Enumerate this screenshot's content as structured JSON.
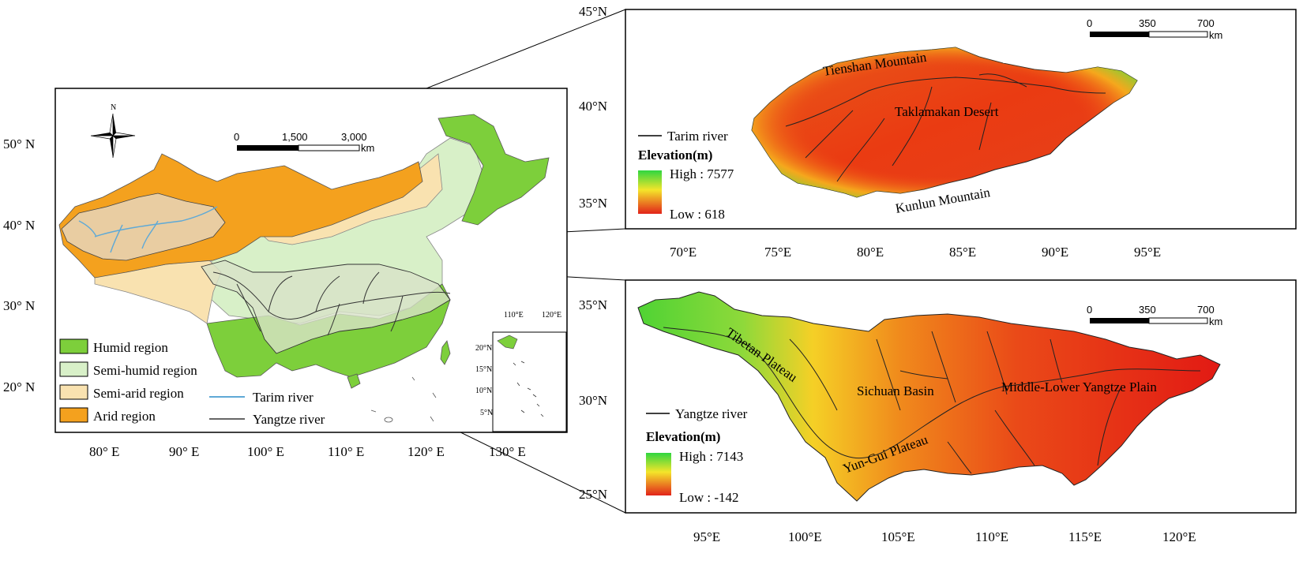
{
  "left_map": {
    "lat_ticks": [
      "50° N",
      "40° N",
      "30° N",
      "20° N"
    ],
    "lon_ticks": [
      "80° E",
      "90° E",
      "100° E",
      "110° E",
      "120° E",
      "130° E"
    ],
    "compass": "N",
    "scale": {
      "labels": [
        "0",
        "1,500",
        "3,000"
      ],
      "unit": "km"
    },
    "legend": [
      {
        "label": "Humid region",
        "color": "#7dcf3b"
      },
      {
        "label": "Semi-humid region",
        "color": "#d8f0c8"
      },
      {
        "label": "Semi-arid region",
        "color": "#f9e2b0"
      },
      {
        "label": "Arid region",
        "color": "#f4a11e"
      }
    ],
    "line_legend": [
      {
        "label": "Tarim river",
        "color": "#5fa9d6"
      },
      {
        "label": "Yangtze river",
        "color": "#333333"
      }
    ],
    "inset": {
      "lon_ticks": [
        "110°E",
        "120°E"
      ],
      "lat_ticks": [
        "20°N",
        "15°N",
        "10°N",
        "5°N"
      ]
    }
  },
  "tarim_map": {
    "lat_ticks": [
      "45°N",
      "40°N",
      "35°N"
    ],
    "lon_ticks": [
      "70°E",
      "75°E",
      "80°E",
      "85°E",
      "90°E",
      "95°E"
    ],
    "labels": {
      "tienshan": "Tienshan Mountain",
      "desert": "Taklamakan Desert",
      "kunlun": "Kunlun Mountain"
    },
    "river_legend": "Tarim river",
    "elevation": {
      "title": "Elevation(m)",
      "high": "High : 7577",
      "low": "Low : 618"
    },
    "scale": {
      "labels": [
        "0",
        "350",
        "700"
      ],
      "unit": "km"
    }
  },
  "yangtze_map": {
    "lat_ticks": [
      "35°N",
      "30°N",
      "25°N"
    ],
    "lon_ticks": [
      "95°E",
      "100°E",
      "105°E",
      "110°E",
      "115°E",
      "120°E"
    ],
    "labels": {
      "tibetan": "Tibetan Plateau",
      "sichuan": "Sichuan Basin",
      "plain": "Middle-Lower Yangtze Plain",
      "yungui": "Yun-Gui Plateau"
    },
    "river_legend": "Yangtze river",
    "elevation": {
      "title": "Elevation(m)",
      "high": "High : 7143",
      "low": "Low : -142"
    },
    "scale": {
      "labels": [
        "0",
        "350",
        "700"
      ],
      "unit": "km"
    }
  }
}
